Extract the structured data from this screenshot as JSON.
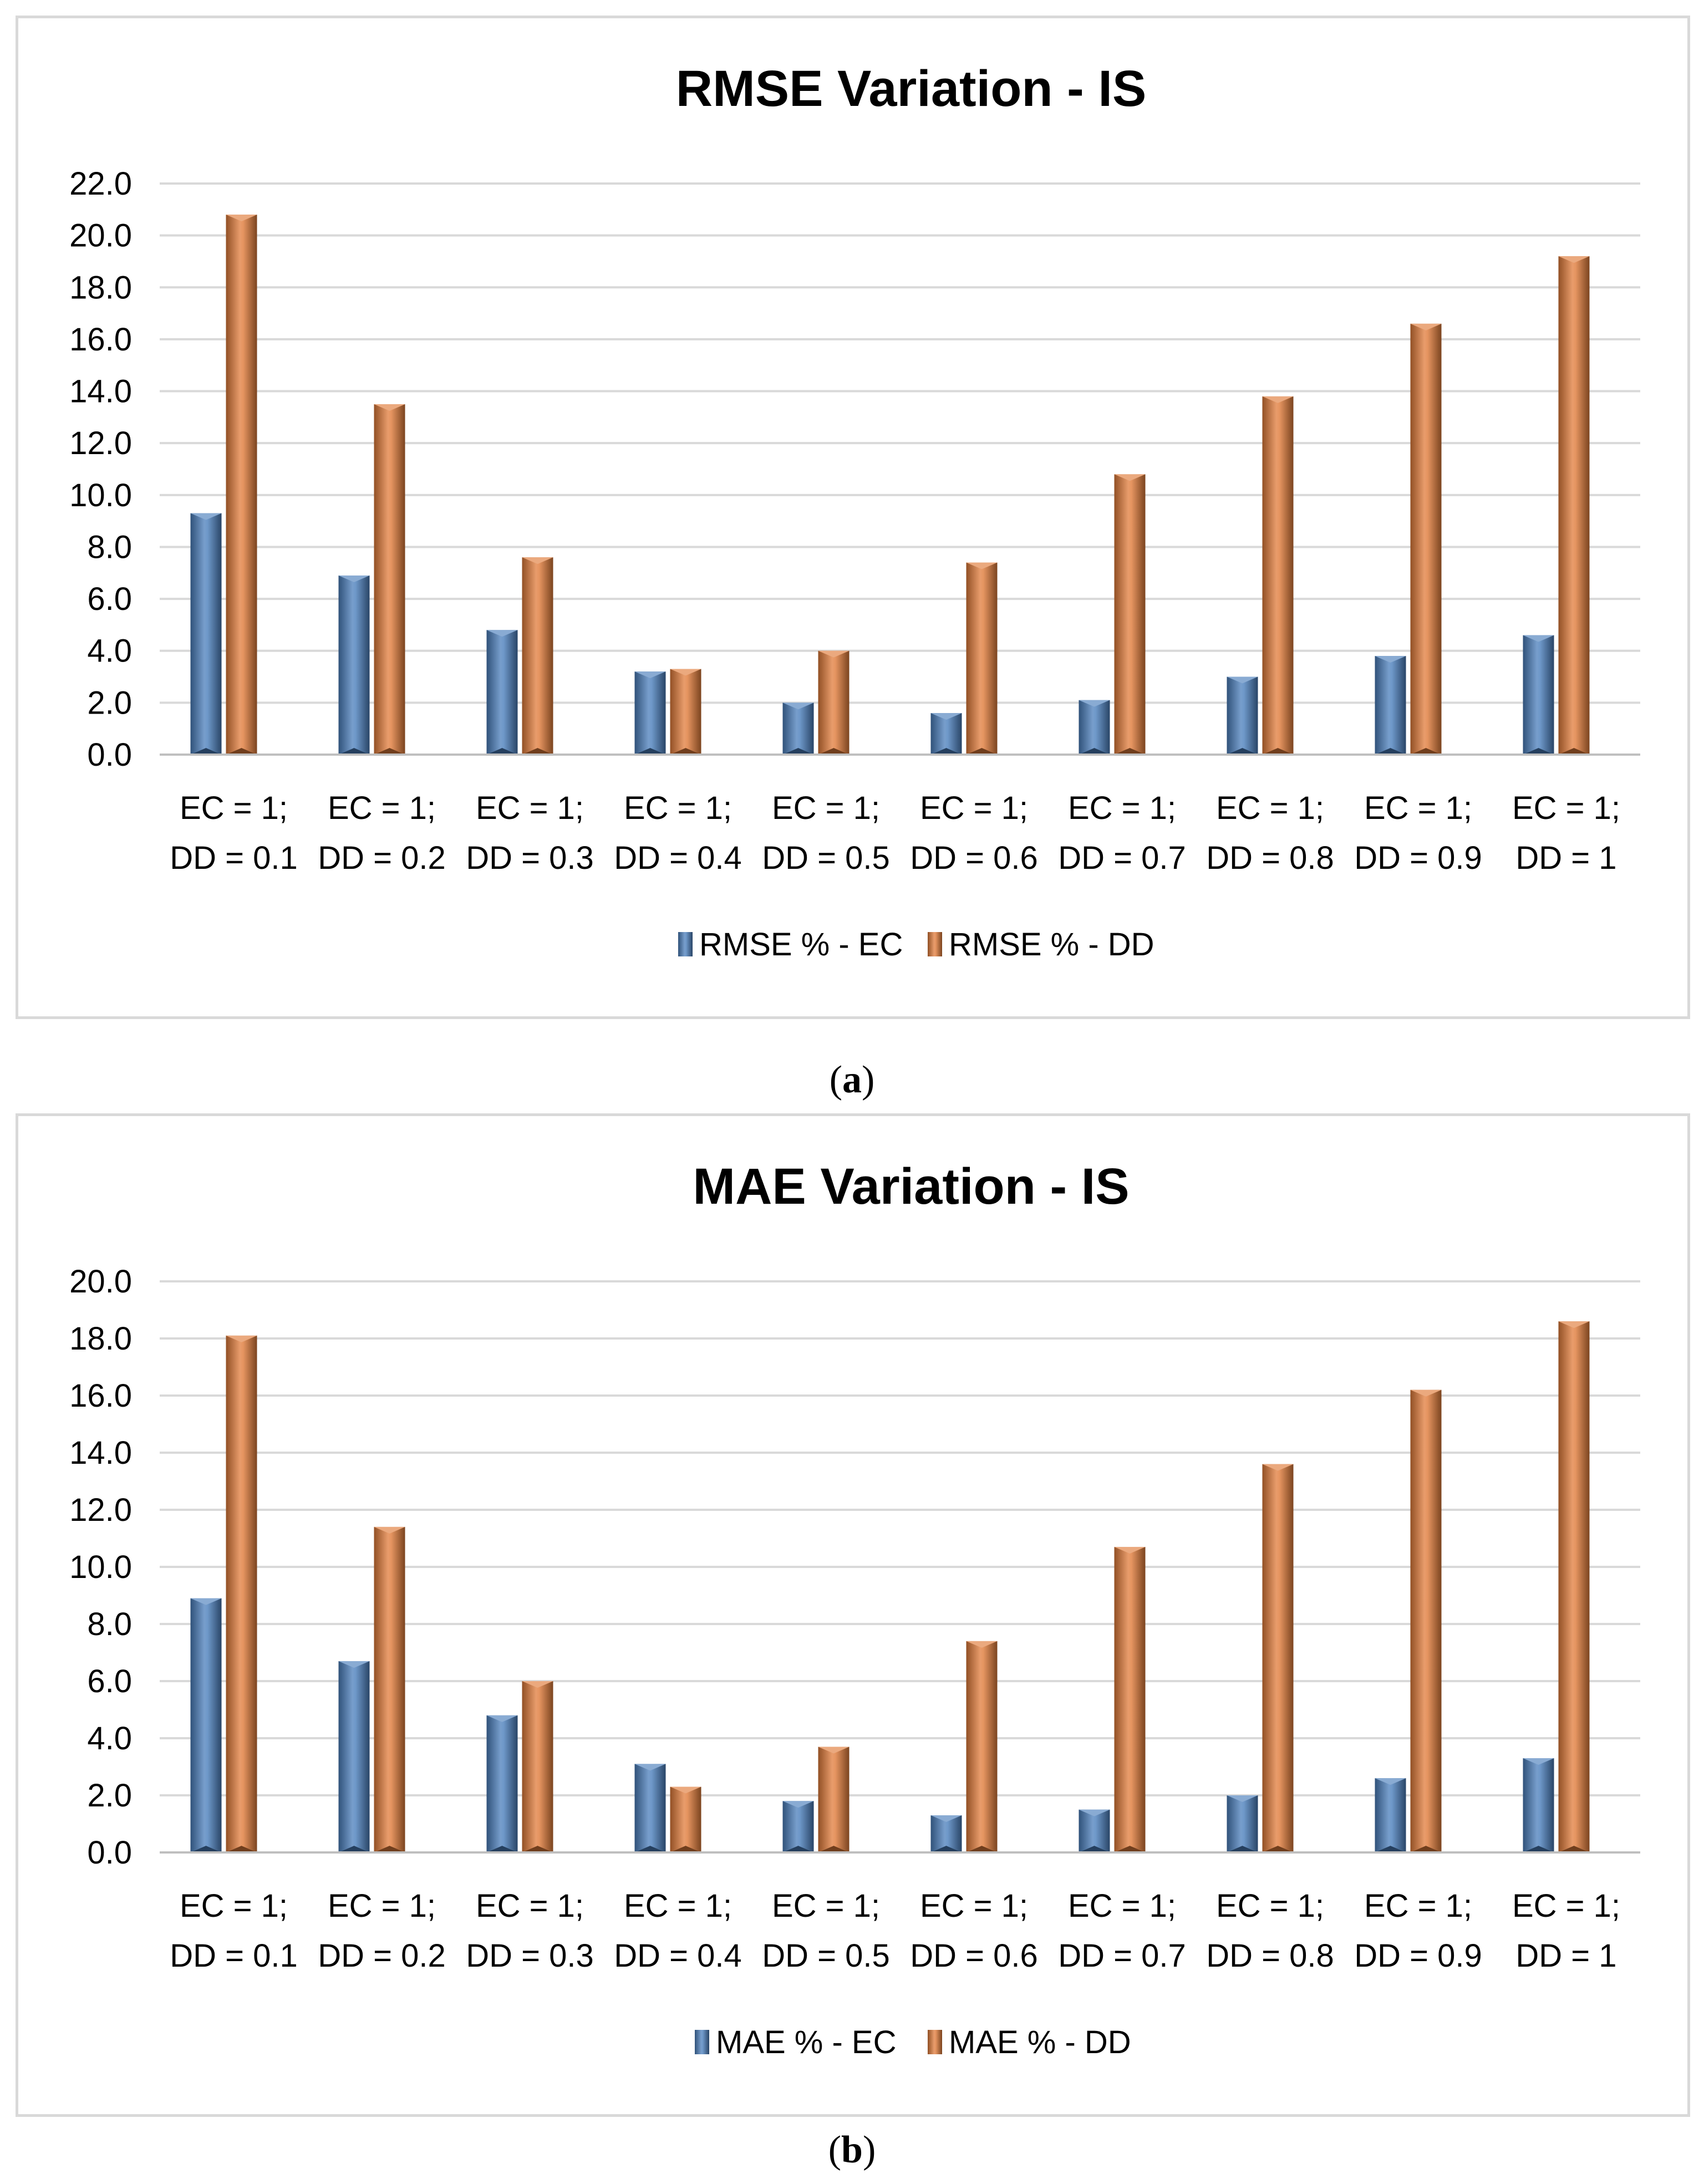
{
  "chart_data": [
    {
      "type": "bar",
      "title": "RMSE Variation - IS",
      "xlabel": "",
      "ylabel": "",
      "ylim": [
        0,
        22
      ],
      "ytick_step": 2,
      "ytick_labels": [
        "0.0",
        "2.0",
        "4.0",
        "6.0",
        "8.0",
        "10.0",
        "12.0",
        "14.0",
        "16.0",
        "18.0",
        "20.0",
        "22.0"
      ],
      "categories": [
        [
          "EC = 1;",
          "DD = 0.1"
        ],
        [
          "EC = 1;",
          "DD = 0.2"
        ],
        [
          "EC = 1;",
          "DD = 0.3"
        ],
        [
          "EC = 1;",
          "DD = 0.4"
        ],
        [
          "EC = 1;",
          "DD = 0.5"
        ],
        [
          "EC = 1;",
          "DD = 0.6"
        ],
        [
          "EC = 1;",
          "DD = 0.7"
        ],
        [
          "EC = 1;",
          "DD = 0.8"
        ],
        [
          "EC = 1;",
          "DD = 0.9"
        ],
        [
          "EC = 1;",
          "DD = 1"
        ]
      ],
      "series": [
        {
          "name": "RMSE % - EC",
          "color": "#4a7ebb",
          "values": [
            9.3,
            6.9,
            4.8,
            3.2,
            2.0,
            1.6,
            2.1,
            3.0,
            3.8,
            4.6
          ]
        },
        {
          "name": "RMSE % - DD",
          "color": "#e07b39",
          "values": [
            20.8,
            13.5,
            7.6,
            3.3,
            4.0,
            7.4,
            10.8,
            13.8,
            16.6,
            19.2
          ]
        }
      ],
      "legend": "bottom",
      "grid": true,
      "caption_letter": "a"
    },
    {
      "type": "bar",
      "title": "MAE Variation - IS",
      "xlabel": "",
      "ylabel": "",
      "ylim": [
        0,
        20
      ],
      "ytick_step": 2,
      "ytick_labels": [
        "0.0",
        "2.0",
        "4.0",
        "6.0",
        "8.0",
        "10.0",
        "12.0",
        "14.0",
        "16.0",
        "18.0",
        "20.0"
      ],
      "categories": [
        [
          "EC = 1;",
          "DD = 0.1"
        ],
        [
          "EC = 1;",
          "DD = 0.2"
        ],
        [
          "EC = 1;",
          "DD = 0.3"
        ],
        [
          "EC = 1;",
          "DD = 0.4"
        ],
        [
          "EC = 1;",
          "DD = 0.5"
        ],
        [
          "EC = 1;",
          "DD = 0.6"
        ],
        [
          "EC = 1;",
          "DD = 0.7"
        ],
        [
          "EC = 1;",
          "DD = 0.8"
        ],
        [
          "EC = 1;",
          "DD = 0.9"
        ],
        [
          "EC = 1;",
          "DD = 1"
        ]
      ],
      "series": [
        {
          "name": "MAE % - EC",
          "color": "#4a7ebb",
          "values": [
            8.9,
            6.7,
            4.8,
            3.1,
            1.8,
            1.3,
            1.5,
            2.0,
            2.6,
            3.3
          ]
        },
        {
          "name": "MAE % - DD",
          "color": "#e07b39",
          "values": [
            18.1,
            11.4,
            6.0,
            2.3,
            3.7,
            7.4,
            10.7,
            13.6,
            16.2,
            18.6
          ]
        }
      ],
      "legend": "bottom",
      "grid": true,
      "caption_letter": "b"
    }
  ],
  "captions": {
    "a": {
      "open": "(",
      "letter": "a",
      "close": ")"
    },
    "b": {
      "open": "(",
      "letter": "b",
      "close": ")"
    }
  }
}
